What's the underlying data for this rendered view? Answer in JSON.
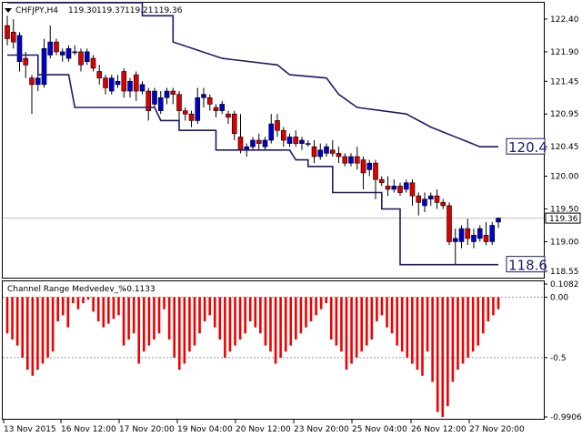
{
  "main_header": {
    "symbol": "CHFJPY,H4",
    "open": "119.30",
    "high": "119.37",
    "low": "119.21",
    "close": "119.36"
  },
  "indicator_header": {
    "name": "Channel Range Medvedev_%",
    "value": "-0.1133"
  },
  "colors": {
    "bull_candle": "#0000cc",
    "bear_candle": "#dd0000",
    "channel_line": "#1a1a6e",
    "histogram": "#ee0000",
    "grid": "#c0c0c0",
    "frame": "#000000"
  },
  "chart_data": [
    {
      "type": "candlestick",
      "y_ticks": [
        "122.40",
        "121.90",
        "121.45",
        "120.95",
        "120.45",
        "120.00",
        "119.50",
        "119.00",
        "118.55"
      ],
      "ylim": [
        118.52,
        122.58
      ],
      "price_marker": "119.36",
      "channel_high_label": "120.4",
      "channel_low_label": "118.6",
      "candles": [
        [
          122.3,
          122.45,
          122.0,
          122.1
        ],
        [
          122.2,
          122.4,
          121.95,
          122.05
        ],
        [
          121.75,
          122.2,
          121.6,
          122.15
        ],
        [
          121.8,
          121.9,
          121.5,
          121.7
        ],
        [
          121.5,
          121.55,
          120.95,
          121.4
        ],
        [
          121.4,
          121.55,
          121.3,
          121.5
        ],
        [
          121.4,
          122.1,
          121.35,
          121.95
        ],
        [
          121.85,
          122.3,
          121.8,
          122.05
        ],
        [
          122.05,
          122.1,
          121.85,
          121.9
        ],
        [
          121.85,
          121.95,
          121.75,
          121.9
        ],
        [
          121.8,
          122.0,
          121.75,
          121.95
        ],
        [
          121.9,
          122.0,
          121.85,
          121.9
        ],
        [
          121.9,
          121.95,
          121.6,
          121.7
        ],
        [
          121.75,
          121.95,
          121.7,
          121.9
        ],
        [
          121.8,
          121.85,
          121.6,
          121.65
        ],
        [
          121.6,
          121.7,
          121.4,
          121.5
        ],
        [
          121.5,
          121.55,
          121.25,
          121.35
        ],
        [
          121.3,
          121.55,
          121.25,
          121.5
        ],
        [
          121.4,
          121.55,
          121.35,
          121.45
        ],
        [
          121.6,
          121.65,
          121.2,
          121.3
        ],
        [
          121.3,
          121.5,
          121.2,
          121.45
        ],
        [
          121.55,
          121.6,
          121.15,
          121.3
        ],
        [
          121.3,
          121.45,
          121.25,
          121.4
        ],
        [
          121.3,
          121.35,
          120.85,
          121.0
        ],
        [
          121.1,
          121.35,
          121.05,
          121.3
        ],
        [
          121.0,
          121.3,
          120.95,
          121.2
        ],
        [
          121.2,
          121.35,
          121.1,
          121.3
        ],
        [
          121.3,
          121.35,
          121.1,
          121.25
        ],
        [
          121.25,
          121.3,
          120.85,
          121.0
        ],
        [
          121.0,
          121.05,
          120.85,
          120.95
        ],
        [
          120.95,
          121.0,
          120.75,
          120.85
        ],
        [
          120.85,
          121.35,
          120.8,
          121.2
        ],
        [
          121.2,
          121.35,
          121.05,
          121.25
        ],
        [
          121.2,
          121.25,
          121.0,
          121.1
        ],
        [
          121.05,
          121.1,
          120.9,
          121.0
        ],
        [
          121.0,
          121.15,
          120.95,
          121.1
        ],
        [
          120.95,
          121.0,
          120.8,
          120.9
        ],
        [
          120.95,
          121.0,
          120.55,
          120.65
        ],
        [
          120.6,
          120.95,
          120.35,
          120.4
        ],
        [
          120.4,
          120.5,
          120.3,
          120.45
        ],
        [
          120.45,
          120.6,
          120.4,
          120.55
        ],
        [
          120.55,
          120.65,
          120.4,
          120.5
        ],
        [
          120.45,
          120.6,
          120.4,
          120.55
        ],
        [
          120.55,
          120.95,
          120.5,
          120.8
        ],
        [
          120.85,
          120.95,
          120.6,
          120.7
        ],
        [
          120.7,
          120.75,
          120.45,
          120.55
        ],
        [
          120.5,
          120.65,
          120.45,
          120.6
        ],
        [
          120.6,
          120.7,
          120.45,
          120.5
        ],
        [
          120.5,
          120.6,
          120.4,
          120.55
        ],
        [
          120.5,
          120.55,
          120.45,
          120.5
        ],
        [
          120.45,
          120.55,
          120.2,
          120.3
        ],
        [
          120.3,
          120.5,
          120.25,
          120.4
        ],
        [
          120.35,
          120.5,
          120.3,
          120.45
        ],
        [
          120.4,
          120.55,
          120.3,
          120.35
        ],
        [
          120.35,
          120.45,
          120.2,
          120.3
        ],
        [
          120.3,
          120.35,
          120.15,
          120.2
        ],
        [
          120.2,
          120.35,
          120.15,
          120.3
        ],
        [
          120.3,
          120.45,
          120.1,
          120.2
        ],
        [
          120.25,
          120.3,
          119.8,
          120.05
        ],
        [
          120.1,
          120.25,
          120.0,
          120.2
        ],
        [
          120.2,
          120.25,
          119.65,
          119.95
        ],
        [
          119.95,
          120.0,
          119.85,
          119.9
        ],
        [
          119.85,
          120.0,
          119.7,
          119.8
        ],
        [
          119.8,
          119.95,
          119.75,
          119.85
        ],
        [
          119.85,
          119.9,
          119.7,
          119.75
        ],
        [
          119.8,
          119.95,
          119.75,
          119.9
        ],
        [
          119.9,
          119.95,
          119.55,
          119.7
        ],
        [
          119.7,
          119.75,
          119.4,
          119.6
        ],
        [
          119.55,
          119.75,
          119.45,
          119.65
        ],
        [
          119.65,
          119.75,
          119.55,
          119.7
        ],
        [
          119.7,
          119.8,
          119.5,
          119.6
        ],
        [
          119.6,
          119.65,
          119.5,
          119.55
        ],
        [
          119.55,
          119.6,
          118.95,
          119.0
        ],
        [
          119.0,
          119.2,
          118.65,
          119.05
        ],
        [
          119.0,
          119.25,
          118.9,
          119.2
        ],
        [
          119.2,
          119.35,
          118.95,
          119.05
        ],
        [
          119.0,
          119.2,
          118.9,
          119.1
        ],
        [
          119.05,
          119.25,
          119.0,
          119.2
        ],
        [
          119.1,
          119.3,
          118.95,
          119.0
        ],
        [
          119.0,
          119.3,
          118.95,
          119.25
        ],
        [
          119.3,
          119.37,
          119.21,
          119.36
        ]
      ],
      "channel_upper_steps": [
        [
          0,
          122.65
        ],
        [
          22,
          122.65
        ],
        [
          22,
          122.45
        ],
        [
          27,
          122.45
        ],
        [
          27,
          122.05
        ],
        [
          35,
          121.8
        ],
        [
          44,
          121.7
        ],
        [
          46,
          121.55
        ],
        [
          52,
          121.5
        ],
        [
          54,
          121.25
        ],
        [
          57,
          121.05
        ],
        [
          65,
          120.95
        ],
        [
          69,
          120.75
        ],
        [
          77,
          120.45
        ],
        [
          80,
          120.45
        ]
      ],
      "channel_lower_steps": [
        [
          0,
          121.85
        ],
        [
          5,
          121.85
        ],
        [
          5,
          121.55
        ],
        [
          10,
          121.55
        ],
        [
          11,
          121.05
        ],
        [
          24,
          121.05
        ],
        [
          25,
          120.85
        ],
        [
          28,
          120.85
        ],
        [
          28,
          120.7
        ],
        [
          34,
          120.7
        ],
        [
          34,
          120.4
        ],
        [
          45,
          120.4
        ],
        [
          46,
          120.4
        ],
        [
          47,
          120.25
        ],
        [
          49,
          120.25
        ],
        [
          49,
          120.15
        ],
        [
          53,
          120.15
        ],
        [
          53,
          119.75
        ],
        [
          61,
          119.75
        ],
        [
          61,
          119.5
        ],
        [
          64,
          119.5
        ],
        [
          64,
          118.65
        ],
        [
          80,
          118.65
        ]
      ],
      "histogram_values": [
        -0.3,
        -0.35,
        -0.4,
        -0.5,
        -0.6,
        -0.65,
        -0.6,
        -0.55,
        -0.5,
        -0.45,
        -0.2,
        -0.15,
        -0.25,
        -0.05,
        -0.1,
        -0.05,
        -0.02,
        -0.12,
        -0.2,
        -0.25,
        -0.22,
        -0.18,
        -0.15,
        -0.4,
        -0.35,
        -0.3,
        -0.55,
        -0.45,
        -0.4,
        -0.35,
        -0.3,
        -0.1,
        -0.35,
        -0.5,
        -0.6,
        -0.55,
        -0.45,
        -0.4,
        -0.3,
        -0.2,
        -0.15,
        -0.25,
        -0.35,
        -0.5,
        -0.45,
        -0.4,
        -0.35,
        -0.3,
        -0.2,
        -0.25,
        -0.3,
        -0.4,
        -0.45,
        -0.55,
        -0.5,
        -0.45,
        -0.4,
        -0.35,
        -0.3,
        -0.25,
        -0.2,
        -0.15,
        -0.1,
        -0.05,
        -0.35,
        -0.4,
        -0.45,
        -0.6,
        -0.55,
        -0.5,
        -0.45,
        -0.4,
        -0.35,
        -0.2,
        -0.15,
        -0.25,
        -0.3,
        -0.4,
        -0.45,
        -0.5,
        -0.55,
        -0.6,
        -0.65,
        -0.45,
        -0.7,
        -0.95,
        -0.99,
        -0.9,
        -0.7,
        -0.6,
        -0.55,
        -0.5,
        -0.45,
        -0.4,
        -0.3,
        -0.2,
        -0.15,
        -0.1
      ],
      "histogram_y_ticks": [
        "0.1082",
        "0.00",
        "-0.5",
        "-0.9906"
      ],
      "histogram_ylim": [
        -0.9906,
        0.1082
      ],
      "x_labels": [
        "13 Nov 2015",
        "16 Nov 12:00",
        "17 Nov 20:00",
        "19 Nov 04:00",
        "20 Nov 12:00",
        "23 Nov 20:00",
        "25 Nov 04:00",
        "26 Nov 12:00",
        "27 Nov 20:00"
      ]
    }
  ]
}
